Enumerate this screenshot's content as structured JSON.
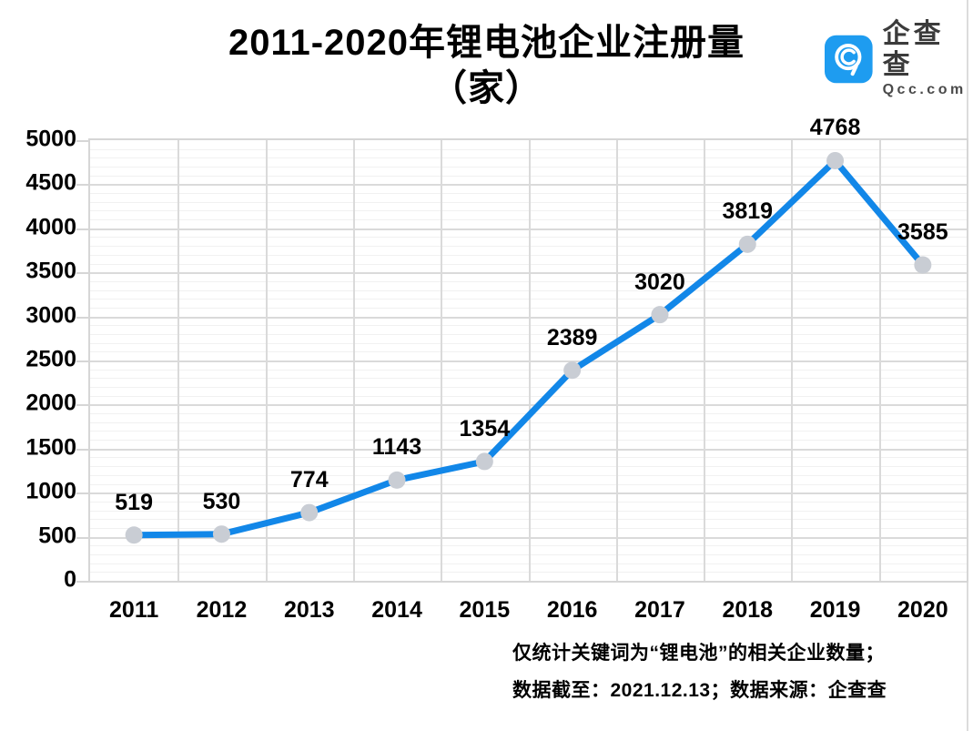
{
  "title": {
    "line1": "2011-2020年锂电池企业注册量",
    "line2": "（家）"
  },
  "logo": {
    "brand_cn": "企查查",
    "brand_en": "Qcc.com"
  },
  "chart_data": {
    "type": "line",
    "title": "2011-2020年锂电池企业注册量（家）",
    "categories": [
      "2011",
      "2012",
      "2013",
      "2014",
      "2015",
      "2016",
      "2017",
      "2018",
      "2019",
      "2020"
    ],
    "values": [
      519,
      530,
      774,
      1143,
      1354,
      2389,
      3020,
      3819,
      4768,
      3585
    ],
    "xlabel": "",
    "ylabel": "",
    "ylim": [
      0,
      5000
    ],
    "y_tick_step": 500,
    "y_minor_step": 100,
    "grid": true,
    "legend": false,
    "data_labels": true,
    "colors": {
      "line": "#1287e8",
      "marker": "#c9cdd4",
      "grid_major": "#dadada",
      "grid_minor": "#f1f1f1",
      "plot_border": "#d6d6d6",
      "logo_blue": "#1e9cf0",
      "text": "#000000"
    }
  },
  "footnotes": [
    "仅统计关键词为“锂电池”的相关企业数量；",
    "数据截至：2021.12.13；数据来源：企查查"
  ]
}
